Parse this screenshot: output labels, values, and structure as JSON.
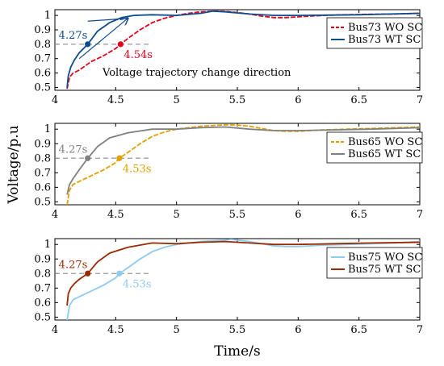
{
  "chart_data": {
    "type": "line",
    "xlabel": "Time/s",
    "ylabel": "Voltage/p.u",
    "xlim": [
      4,
      7
    ],
    "ylim": [
      0.48,
      1.04
    ],
    "x_ticks": [
      "4",
      "4.5",
      "5",
      "5.5",
      "6",
      "6.5",
      "7"
    ],
    "y_ticks": [
      "0.5",
      "0.6",
      "0.7",
      "0.8",
      "0.9",
      "1"
    ],
    "threshold": 0.8,
    "legend_position": "top-right",
    "panels": [
      {
        "series": [
          {
            "name": "Bus73 WO SC",
            "color": "#e3001b",
            "style": "dashed",
            "x": [
              4.1,
              4.12,
              4.15,
              4.2,
              4.25,
              4.3,
              4.4,
              4.5,
              4.54,
              4.6,
              4.7,
              4.8,
              4.9,
              5.0,
              5.1,
              5.2,
              5.3,
              5.35,
              5.4,
              5.5,
              5.6,
              5.7,
              5.8,
              5.9,
              6.0,
              6.2,
              6.4,
              6.6,
              6.8,
              7.0
            ],
            "y": [
              0.49,
              0.57,
              0.6,
              0.62,
              0.65,
              0.68,
              0.72,
              0.77,
              0.8,
              0.84,
              0.9,
              0.95,
              0.98,
              1.0,
              1.015,
              1.025,
              1.03,
              1.03,
              1.028,
              1.02,
              1.01,
              0.995,
              0.985,
              0.985,
              0.99,
              1.0,
              1.005,
              1.008,
              1.01,
              1.015
            ]
          },
          {
            "name": "Bus73 WT SC",
            "color": "#0f4c8c",
            "style": "solid",
            "x": [
              4.1,
              4.11,
              4.13,
              4.16,
              4.2,
              4.27,
              4.35,
              4.45,
              4.55,
              4.65,
              4.8,
              5.0,
              5.2,
              5.3,
              5.4,
              5.6,
              5.8,
              6.0,
              6.2,
              6.5,
              7.0
            ],
            "y": [
              0.5,
              0.58,
              0.64,
              0.69,
              0.74,
              0.8,
              0.89,
              0.95,
              0.985,
              1.0,
              1.005,
              1.0,
              1.015,
              1.03,
              1.025,
              1.01,
              1.0,
              1.0,
              1.002,
              1.005,
              1.015
            ]
          }
        ],
        "markers": [
          {
            "label": "4.27s",
            "x": 4.27,
            "y": 0.8,
            "color": "#0f4c8c"
          },
          {
            "label": "4.54s",
            "x": 4.54,
            "y": 0.8,
            "color": "#e3001b"
          }
        ],
        "annotation": "Voltage trajectory change direction"
      },
      {
        "series": [
          {
            "name": "Bus65 WO SC",
            "color": "#e0a000",
            "style": "dashed",
            "x": [
              4.1,
              4.12,
              4.15,
              4.2,
              4.3,
              4.4,
              4.5,
              4.53,
              4.6,
              4.7,
              4.8,
              4.9,
              5.0,
              5.1,
              5.2,
              5.3,
              5.4,
              5.45,
              5.5,
              5.6,
              5.7,
              5.8,
              5.9,
              6.0,
              6.2,
              6.4,
              6.6,
              6.8,
              7.0
            ],
            "y": [
              0.48,
              0.58,
              0.62,
              0.64,
              0.68,
              0.72,
              0.77,
              0.8,
              0.84,
              0.9,
              0.95,
              0.98,
              1.0,
              1.01,
              1.02,
              1.025,
              1.03,
              1.03,
              1.028,
              1.02,
              1.005,
              0.99,
              0.985,
              0.985,
              0.995,
              1.0,
              1.005,
              1.01,
              1.015
            ]
          },
          {
            "name": "Bus65 WT SC",
            "color": "#808080",
            "style": "solid",
            "x": [
              4.1,
              4.12,
              4.15,
              4.2,
              4.27,
              4.35,
              4.45,
              4.6,
              4.8,
              5.0,
              5.2,
              5.4,
              5.6,
              5.8,
              6.0,
              6.3,
              6.6,
              7.0
            ],
            "y": [
              0.55,
              0.62,
              0.66,
              0.72,
              0.8,
              0.88,
              0.94,
              0.975,
              1.0,
              1.0,
              1.01,
              1.015,
              1.0,
              0.99,
              0.99,
              0.995,
              1.0,
              1.01
            ]
          }
        ],
        "markers": [
          {
            "label": "4.27s",
            "x": 4.27,
            "y": 0.8,
            "color": "#808080"
          },
          {
            "label": "4.53s",
            "x": 4.53,
            "y": 0.8,
            "color": "#e0a000"
          }
        ]
      },
      {
        "series": [
          {
            "name": "Bus75 WO SC",
            "color": "#8ecbf0",
            "style": "solid",
            "x": [
              4.1,
              4.12,
              4.15,
              4.2,
              4.3,
              4.4,
              4.5,
              4.53,
              4.6,
              4.7,
              4.8,
              4.9,
              5.0,
              5.1,
              5.2,
              5.3,
              5.4,
              5.45,
              5.5,
              5.6,
              5.7,
              5.8,
              5.9,
              6.0,
              6.2,
              6.4,
              6.6,
              6.8,
              7.0
            ],
            "y": [
              0.48,
              0.58,
              0.62,
              0.64,
              0.68,
              0.72,
              0.77,
              0.8,
              0.84,
              0.9,
              0.95,
              0.98,
              1.0,
              1.01,
              1.02,
              1.025,
              1.03,
              1.035,
              1.03,
              1.02,
              1.005,
              0.99,
              0.985,
              0.985,
              0.995,
              1.0,
              1.005,
              1.01,
              1.02
            ]
          },
          {
            "name": "Bus75 WT SC",
            "color": "#9c2a00",
            "style": "solid",
            "x": [
              4.1,
              4.11,
              4.13,
              4.16,
              4.2,
              4.27,
              4.35,
              4.45,
              4.6,
              4.8,
              5.0,
              5.2,
              5.4,
              5.6,
              5.8,
              6.0,
              6.3,
              6.6,
              7.0
            ],
            "y": [
              0.58,
              0.66,
              0.7,
              0.73,
              0.76,
              0.8,
              0.88,
              0.94,
              0.98,
              1.01,
              1.005,
              1.015,
              1.02,
              1.01,
              1.0,
              1.0,
              1.005,
              1.01,
              1.015
            ]
          }
        ],
        "markers": [
          {
            "label": "4.27s",
            "x": 4.27,
            "y": 0.8,
            "color": "#9c2a00"
          },
          {
            "label": "4.53s",
            "x": 4.53,
            "y": 0.8,
            "color": "#8ecbf0"
          }
        ]
      }
    ]
  }
}
